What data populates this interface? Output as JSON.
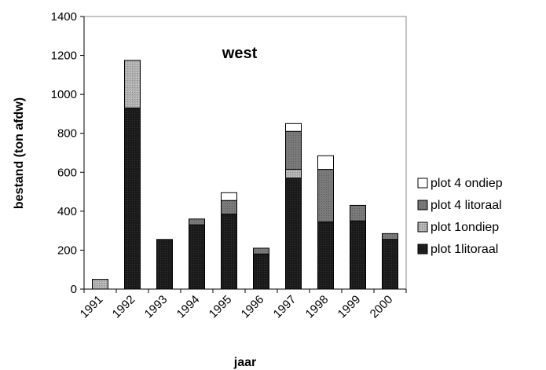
{
  "chart_data": {
    "type": "bar",
    "stacked": true,
    "title": "west",
    "xlabel": "jaar",
    "ylabel": "bestand (ton afdw)",
    "ylim": [
      0,
      1400
    ],
    "yticks": [
      0,
      200,
      400,
      600,
      800,
      1000,
      1200,
      1400
    ],
    "categories": [
      "1991",
      "1992",
      "1993",
      "1994",
      "1995",
      "1996",
      "1997",
      "1998",
      "1999",
      "2000"
    ],
    "series": [
      {
        "name": "plot 1litoraal",
        "color": "#111111",
        "values": [
          0,
          930,
          255,
          330,
          385,
          180,
          570,
          345,
          350,
          255
        ]
      },
      {
        "name": "plot 1ondiep",
        "color": "#a9a9a9",
        "values": [
          50,
          245,
          0,
          0,
          0,
          0,
          45,
          0,
          0,
          0
        ]
      },
      {
        "name": "plot 4 litoraal",
        "color": "#7d7d7d",
        "values": [
          0,
          0,
          0,
          30,
          70,
          30,
          195,
          270,
          80,
          30
        ]
      },
      {
        "name": "plot 4 ondiep",
        "color": "#ffffff",
        "values": [
          0,
          0,
          0,
          0,
          40,
          0,
          40,
          70,
          0,
          0
        ]
      }
    ],
    "legend_position": "right",
    "grid": false
  }
}
